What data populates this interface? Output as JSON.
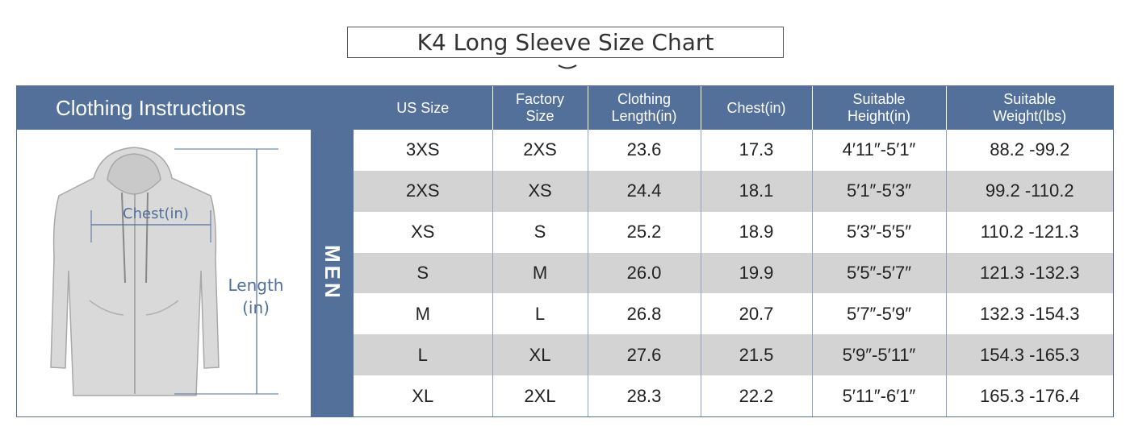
{
  "title": "K4 Long Sleeve Size Chart",
  "instructions": {
    "heading": "Clothing Instructions",
    "chest_label": "Chest(in)",
    "length_label_line1": "Length",
    "length_label_line2": "(in)"
  },
  "section_label": "MEN",
  "colors": {
    "header_bg": "#52709a",
    "row_alt": "#d3d3d3"
  },
  "table": {
    "headers": [
      [
        "US Size"
      ],
      [
        "Factory",
        "Size"
      ],
      [
        "Clothing",
        "Length(in)"
      ],
      [
        "Chest(in)"
      ],
      [
        "Suitable",
        "Height(in)"
      ],
      [
        "Suitable",
        "Weight(lbs)"
      ]
    ],
    "rows": [
      [
        "3XS",
        "2XS",
        "23.6",
        "17.3",
        "4′11″-5′1″",
        "88.2 -99.2"
      ],
      [
        "2XS",
        "XS",
        "24.4",
        "18.1",
        "5′1″-5′3″",
        "99.2 -110.2"
      ],
      [
        "XS",
        "S",
        "25.2",
        "18.9",
        "5′3″-5′5″",
        "110.2 -121.3"
      ],
      [
        "S",
        "M",
        "26.0",
        "19.9",
        "5′5″-5′7″",
        "121.3 -132.3"
      ],
      [
        "M",
        "L",
        "26.8",
        "20.7",
        "5′7″-5′9″",
        "132.3 -154.3"
      ],
      [
        "L",
        "XL",
        "27.6",
        "21.5",
        "5′9″-5′11″",
        "154.3 -165.3"
      ],
      [
        "XL",
        "2XL",
        "28.3",
        "22.2",
        "5′11″-6′1″",
        "165.3 -176.4"
      ]
    ]
  }
}
